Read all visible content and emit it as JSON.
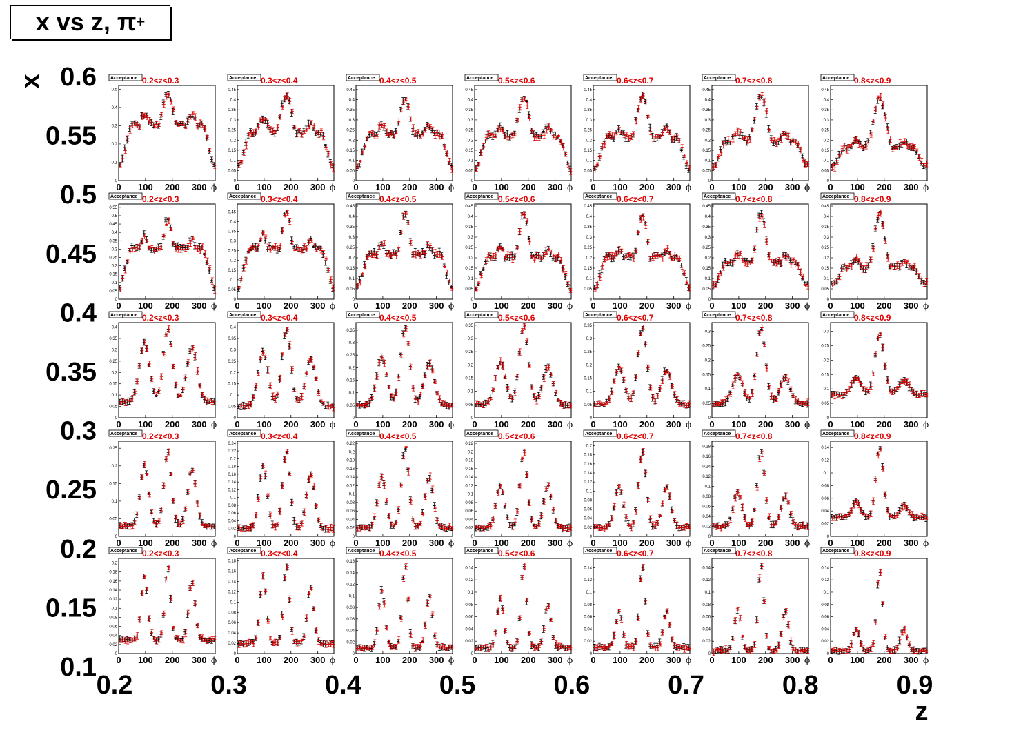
{
  "header": {
    "title_main": "x vs z, π",
    "title_sup": "+"
  },
  "chart_data": {
    "type": "scatter",
    "title": "x vs z, π+",
    "xlabel": "z",
    "ylabel": "x",
    "x_ticks": [
      "0.2",
      "0.3",
      "0.4",
      "0.5",
      "0.6",
      "0.7",
      "0.8",
      "0.9"
    ],
    "y_ticks": [
      "0.6",
      "0.55",
      "0.5",
      "0.45",
      "0.4",
      "0.35",
      "0.3",
      "0.25",
      "0.2",
      "0.15",
      "0.1"
    ],
    "xlim": [
      0.2,
      0.9
    ],
    "ylim": [
      0.1,
      0.6
    ],
    "z_bins": [
      "0.2<z<0.3",
      "0.3<z<0.4",
      "0.4<z<0.5",
      "0.5<z<0.6",
      "0.6<z<0.7",
      "0.7<z<0.8",
      "0.8<z<0.9"
    ],
    "x_bins": [
      "0.5-0.6",
      "0.4-0.5",
      "0.3-0.4",
      "0.2-0.3",
      "0.1-0.2"
    ],
    "pad_legend_label": "Acceptance",
    "pad_xlabel": "ϕ",
    "pad_xticks": [
      0,
      100,
      200,
      300
    ],
    "pad_xlim": [
      0,
      360
    ],
    "series_colors": {
      "black": "#000000",
      "red": "#e00000"
    },
    "pads": [
      {
        "row": 0,
        "col": 0,
        "ymax": 0.52,
        "yticks": [
          0.1,
          0.2,
          0.3,
          0.4,
          0.5
        ],
        "peaks": [
          0.36,
          0.47,
          0.36
        ],
        "base": 0.08,
        "sharp": 0.9
      },
      {
        "row": 0,
        "col": 1,
        "ymax": 0.47,
        "yticks": [
          0.05,
          0.1,
          0.15,
          0.2,
          0.25,
          0.3,
          0.35,
          0.4,
          0.45
        ],
        "peaks": [
          0.31,
          0.42,
          0.28
        ],
        "base": 0.07,
        "sharp": 0.9
      },
      {
        "row": 0,
        "col": 2,
        "ymax": 0.47,
        "yticks": [
          0.05,
          0.1,
          0.15,
          0.2,
          0.25,
          0.3,
          0.35,
          0.4,
          0.45
        ],
        "peaks": [
          0.27,
          0.39,
          0.27
        ],
        "base": 0.06,
        "sharp": 0.9
      },
      {
        "row": 0,
        "col": 3,
        "ymax": 0.47,
        "yticks": [
          0.05,
          0.1,
          0.15,
          0.2,
          0.25,
          0.3,
          0.35,
          0.4,
          0.45
        ],
        "peaks": [
          0.26,
          0.41,
          0.26
        ],
        "base": 0.05,
        "sharp": 0.9
      },
      {
        "row": 0,
        "col": 4,
        "ymax": 0.47,
        "yticks": [
          0.05,
          0.1,
          0.15,
          0.2,
          0.25,
          0.3,
          0.35,
          0.4,
          0.45
        ],
        "peaks": [
          0.25,
          0.41,
          0.26
        ],
        "base": 0.05,
        "sharp": 0.9
      },
      {
        "row": 0,
        "col": 5,
        "ymax": 0.47,
        "yticks": [
          0.05,
          0.1,
          0.15,
          0.2,
          0.25,
          0.3,
          0.35,
          0.4,
          0.45
        ],
        "peaks": [
          0.24,
          0.42,
          0.23
        ],
        "base": 0.07,
        "sharp": 0.9
      },
      {
        "row": 0,
        "col": 6,
        "ymax": 0.47,
        "yticks": [
          0.05,
          0.1,
          0.15,
          0.2,
          0.25,
          0.3,
          0.35,
          0.4,
          0.45
        ],
        "peaks": [
          0.19,
          0.41,
          0.19
        ],
        "base": 0.07,
        "sharp": 0.9
      },
      {
        "row": 1,
        "col": 0,
        "ymax": 0.57,
        "yticks": [
          0.05,
          0.1,
          0.15,
          0.2,
          0.25,
          0.3,
          0.35,
          0.4,
          0.45,
          0.5,
          0.55
        ],
        "peaks": [
          0.38,
          0.48,
          0.36
        ],
        "base": 0.06,
        "sharp": 1.3
      },
      {
        "row": 1,
        "col": 1,
        "ymax": 0.49,
        "yticks": [
          0.05,
          0.1,
          0.15,
          0.2,
          0.25,
          0.3,
          0.35,
          0.4,
          0.45
        ],
        "peaks": [
          0.33,
          0.45,
          0.31
        ],
        "base": 0.05,
        "sharp": 1.3
      },
      {
        "row": 1,
        "col": 2,
        "ymax": 0.46,
        "yticks": [
          0.05,
          0.1,
          0.15,
          0.2,
          0.25,
          0.3,
          0.35,
          0.4,
          0.45
        ],
        "peaks": [
          0.27,
          0.41,
          0.26
        ],
        "base": 0.06,
        "sharp": 1.3
      },
      {
        "row": 1,
        "col": 3,
        "ymax": 0.46,
        "yticks": [
          0.05,
          0.1,
          0.15,
          0.2,
          0.25,
          0.3,
          0.35,
          0.4,
          0.45
        ],
        "peaks": [
          0.25,
          0.42,
          0.24
        ],
        "base": 0.05,
        "sharp": 1.3
      },
      {
        "row": 1,
        "col": 4,
        "ymax": 0.46,
        "yticks": [
          0.05,
          0.1,
          0.15,
          0.2,
          0.25,
          0.3,
          0.35,
          0.4,
          0.45
        ],
        "peaks": [
          0.24,
          0.41,
          0.24
        ],
        "base": 0.05,
        "sharp": 1.3
      },
      {
        "row": 1,
        "col": 5,
        "ymax": 0.46,
        "yticks": [
          0.05,
          0.1,
          0.15,
          0.2,
          0.25,
          0.3,
          0.35,
          0.4,
          0.45
        ],
        "peaks": [
          0.22,
          0.41,
          0.21
        ],
        "base": 0.07,
        "sharp": 1.3
      },
      {
        "row": 1,
        "col": 6,
        "ymax": 0.46,
        "yticks": [
          0.05,
          0.1,
          0.15,
          0.2,
          0.25,
          0.3,
          0.35,
          0.4,
          0.45
        ],
        "peaks": [
          0.19,
          0.41,
          0.18
        ],
        "base": 0.08,
        "sharp": 1.3
      },
      {
        "row": 2,
        "col": 0,
        "ymax": 0.42,
        "yticks": [
          0.05,
          0.1,
          0.15,
          0.2,
          0.25,
          0.3,
          0.35,
          0.4
        ],
        "peaks": [
          0.33,
          0.39,
          0.31
        ],
        "base": 0.07,
        "sharp": 2.0
      },
      {
        "row": 2,
        "col": 1,
        "ymax": 0.42,
        "yticks": [
          0.05,
          0.1,
          0.15,
          0.2,
          0.25,
          0.3,
          0.35,
          0.4
        ],
        "peaks": [
          0.29,
          0.39,
          0.26
        ],
        "base": 0.05,
        "sharp": 2.0
      },
      {
        "row": 2,
        "col": 2,
        "ymax": 0.38,
        "yticks": [
          0.05,
          0.1,
          0.15,
          0.2,
          0.25,
          0.3,
          0.35
        ],
        "peaks": [
          0.24,
          0.36,
          0.22
        ],
        "base": 0.05,
        "sharp": 2.0
      },
      {
        "row": 2,
        "col": 3,
        "ymax": 0.36,
        "yticks": [
          0.05,
          0.1,
          0.15,
          0.2,
          0.25,
          0.3,
          0.35
        ],
        "peaks": [
          0.21,
          0.35,
          0.19
        ],
        "base": 0.05,
        "sharp": 2.0
      },
      {
        "row": 2,
        "col": 4,
        "ymax": 0.36,
        "yticks": [
          0.05,
          0.1,
          0.15,
          0.2,
          0.25,
          0.3,
          0.35
        ],
        "peaks": [
          0.19,
          0.34,
          0.18
        ],
        "base": 0.05,
        "sharp": 2.0
      },
      {
        "row": 2,
        "col": 5,
        "ymax": 0.33,
        "yticks": [
          0.05,
          0.1,
          0.15,
          0.2,
          0.25,
          0.3
        ],
        "peaks": [
          0.15,
          0.31,
          0.14
        ],
        "base": 0.05,
        "sharp": 2.0
      },
      {
        "row": 2,
        "col": 6,
        "ymax": 0.33,
        "yticks": [
          0.05,
          0.1,
          0.15,
          0.2,
          0.25,
          0.3
        ],
        "peaks": [
          0.14,
          0.29,
          0.13
        ],
        "base": 0.08,
        "sharp": 2.0
      },
      {
        "row": 3,
        "col": 0,
        "ymax": 0.27,
        "yticks": [
          0.05,
          0.1,
          0.15,
          0.2,
          0.25
        ],
        "peaks": [
          0.2,
          0.24,
          0.19
        ],
        "base": 0.03,
        "sharp": 3.0
      },
      {
        "row": 3,
        "col": 1,
        "ymax": 0.245,
        "yticks": [
          0.02,
          0.04,
          0.06,
          0.08,
          0.1,
          0.12,
          0.14,
          0.16,
          0.18,
          0.2,
          0.22,
          0.24
        ],
        "peaks": [
          0.18,
          0.22,
          0.16
        ],
        "base": 0.02,
        "sharp": 3.0
      },
      {
        "row": 3,
        "col": 2,
        "ymax": 0.225,
        "yticks": [
          0.02,
          0.04,
          0.06,
          0.08,
          0.1,
          0.12,
          0.14,
          0.16,
          0.18,
          0.2,
          0.22
        ],
        "peaks": [
          0.14,
          0.21,
          0.14
        ],
        "base": 0.02,
        "sharp": 3.0
      },
      {
        "row": 3,
        "col": 3,
        "ymax": 0.225,
        "yticks": [
          0.02,
          0.04,
          0.06,
          0.08,
          0.1,
          0.12,
          0.14,
          0.16,
          0.18,
          0.2,
          0.22
        ],
        "peaks": [
          0.12,
          0.2,
          0.12
        ],
        "base": 0.02,
        "sharp": 3.0
      },
      {
        "row": 3,
        "col": 4,
        "ymax": 0.21,
        "yticks": [
          0.02,
          0.04,
          0.06,
          0.08,
          0.1,
          0.12,
          0.14,
          0.16,
          0.18,
          0.2
        ],
        "peaks": [
          0.11,
          0.19,
          0.11
        ],
        "base": 0.02,
        "sharp": 3.0
      },
      {
        "row": 3,
        "col": 5,
        "ymax": 0.19,
        "yticks": [
          0.02,
          0.04,
          0.06,
          0.08,
          0.1,
          0.12,
          0.14,
          0.16,
          0.18
        ],
        "peaks": [
          0.09,
          0.17,
          0.08
        ],
        "base": 0.02,
        "sharp": 3.0
      },
      {
        "row": 3,
        "col": 6,
        "ymax": 0.15,
        "yticks": [
          0.02,
          0.04,
          0.06,
          0.08,
          0.1,
          0.12,
          0.14
        ],
        "peaks": [
          0.055,
          0.14,
          0.05
        ],
        "base": 0.03,
        "sharp": 3.0
      },
      {
        "row": 4,
        "col": 0,
        "ymax": 0.21,
        "yticks": [
          0.02,
          0.04,
          0.06,
          0.08,
          0.1,
          0.12,
          0.14,
          0.16,
          0.18,
          0.2
        ],
        "peaks": [
          0.17,
          0.19,
          0.16
        ],
        "base": 0.03,
        "sharp": 5.0
      },
      {
        "row": 4,
        "col": 1,
        "ymax": 0.185,
        "yticks": [
          0.02,
          0.04,
          0.06,
          0.08,
          0.1,
          0.12,
          0.14,
          0.16,
          0.18
        ],
        "peaks": [
          0.15,
          0.17,
          0.13
        ],
        "base": 0.02,
        "sharp": 5.0
      },
      {
        "row": 4,
        "col": 2,
        "ymax": 0.165,
        "yticks": [
          0.02,
          0.04,
          0.06,
          0.08,
          0.1,
          0.12,
          0.14,
          0.16
        ],
        "peaks": [
          0.11,
          0.155,
          0.1
        ],
        "base": 0.01,
        "sharp": 5.0
      },
      {
        "row": 4,
        "col": 3,
        "ymax": 0.155,
        "yticks": [
          0.02,
          0.04,
          0.06,
          0.08,
          0.1,
          0.12,
          0.14
        ],
        "peaks": [
          0.09,
          0.145,
          0.08
        ],
        "base": 0.01,
        "sharp": 5.0
      },
      {
        "row": 4,
        "col": 4,
        "ymax": 0.155,
        "yticks": [
          0.02,
          0.04,
          0.06,
          0.08,
          0.1,
          0.12,
          0.14
        ],
        "peaks": [
          0.07,
          0.145,
          0.07
        ],
        "base": 0.01,
        "sharp": 5.0
      },
      {
        "row": 4,
        "col": 5,
        "ymax": 0.155,
        "yticks": [
          0.02,
          0.04,
          0.06,
          0.08,
          0.1,
          0.12,
          0.14
        ],
        "peaks": [
          0.07,
          0.145,
          0.07
        ],
        "base": 0.005,
        "sharp": 5.0
      },
      {
        "row": 4,
        "col": 6,
        "ymax": 0.155,
        "yticks": [
          0.02,
          0.04,
          0.06,
          0.08,
          0.1,
          0.12,
          0.14
        ],
        "peaks": [
          0.04,
          0.135,
          0.04
        ],
        "base": 0.005,
        "sharp": 5.0
      }
    ]
  }
}
